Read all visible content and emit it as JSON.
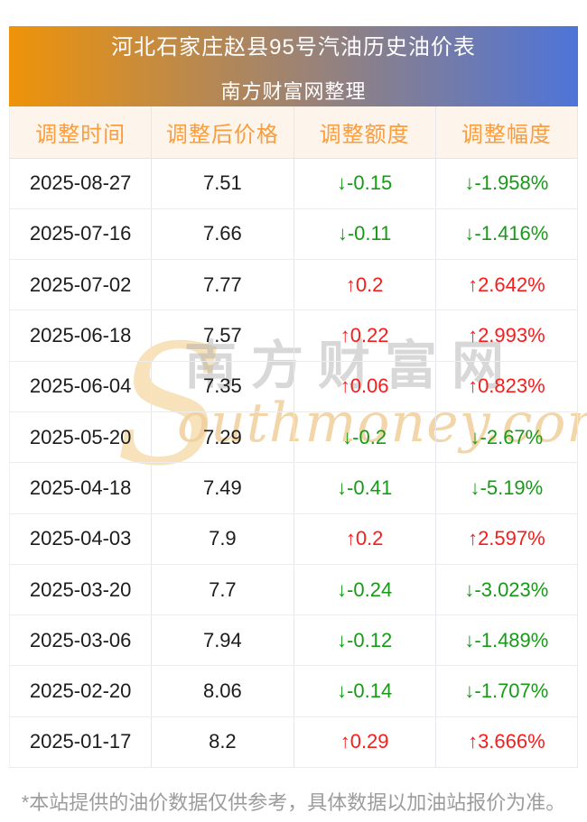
{
  "header": {
    "title": "河北石家庄赵县95号汽油历史油价表",
    "subtitle": "南方财富网整理"
  },
  "watermark": {
    "initial": "S",
    "cn": "南方财富网",
    "en": "outhmoney.com"
  },
  "footnote": "*本站提供的油价数据仅供参考，具体数据以加油站报价为准。",
  "chart_data": {
    "type": "table",
    "title": "河北石家庄赵县95号汽油历史油价表",
    "subtitle": "南方财富网整理",
    "columns": [
      "调整时间",
      "调整后价格",
      "调整额度",
      "调整幅度"
    ],
    "rows": [
      {
        "date": "2025-08-27",
        "price": "7.51",
        "change": "↓-0.15",
        "pct": "↓-1.958%",
        "direction": "down"
      },
      {
        "date": "2025-07-16",
        "price": "7.66",
        "change": "↓-0.11",
        "pct": "↓-1.416%",
        "direction": "down"
      },
      {
        "date": "2025-07-02",
        "price": "7.77",
        "change": "↑0.2",
        "pct": "↑2.642%",
        "direction": "up"
      },
      {
        "date": "2025-06-18",
        "price": "7.57",
        "change": "↑0.22",
        "pct": "↑2.993%",
        "direction": "up"
      },
      {
        "date": "2025-06-04",
        "price": "7.35",
        "change": "↑0.06",
        "pct": "↑0.823%",
        "direction": "up"
      },
      {
        "date": "2025-05-20",
        "price": "7.29",
        "change": "↓-0.2",
        "pct": "↓-2.67%",
        "direction": "down"
      },
      {
        "date": "2025-04-18",
        "price": "7.49",
        "change": "↓-0.41",
        "pct": "↓-5.19%",
        "direction": "down"
      },
      {
        "date": "2025-04-03",
        "price": "7.9",
        "change": "↑0.2",
        "pct": "↑2.597%",
        "direction": "up"
      },
      {
        "date": "2025-03-20",
        "price": "7.7",
        "change": "↓-0.24",
        "pct": "↓-3.023%",
        "direction": "down"
      },
      {
        "date": "2025-03-06",
        "price": "7.94",
        "change": "↓-0.12",
        "pct": "↓-1.489%",
        "direction": "down"
      },
      {
        "date": "2025-02-20",
        "price": "8.06",
        "change": "↓-0.14",
        "pct": "↓-1.707%",
        "direction": "down"
      },
      {
        "date": "2025-01-17",
        "price": "8.2",
        "change": "↑0.29",
        "pct": "↑3.666%",
        "direction": "up"
      }
    ],
    "colors": {
      "increase": "#f61d1d",
      "decrease": "#169b16",
      "header_text": "#f99d3e",
      "header_bg": "#fdf5ec",
      "banner_gradient_left": "#ef9309",
      "banner_gradient_right": "#4e74d9"
    }
  }
}
